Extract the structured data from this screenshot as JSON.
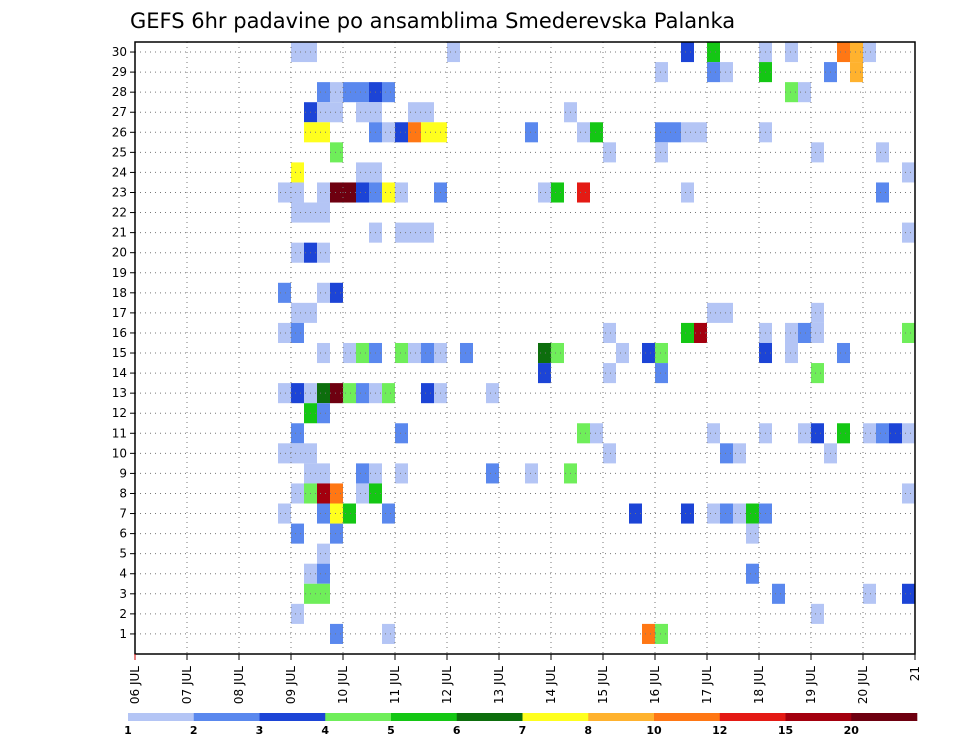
{
  "chart_data": {
    "type": "heatmap",
    "title": "GEFS 6hr padavine po ansamblima Smederevska Palanka",
    "x_tick_labels": [
      "06 JUL",
      "07 JUL",
      "08 JUL",
      "09 JUL",
      "10 JUL",
      "11 JUL",
      "12 JUL",
      "13 JUL",
      "14 JUL",
      "15 JUL",
      "16 JUL",
      "17 JUL",
      "18 JUL",
      "19 JUL",
      "20 JUL",
      "21"
    ],
    "y_tick_labels": [
      "1",
      "2",
      "3",
      "4",
      "5",
      "6",
      "7",
      "8",
      "9",
      "10",
      "11",
      "12",
      "13",
      "14",
      "15",
      "16",
      "17",
      "18",
      "19",
      "20",
      "21",
      "22",
      "23",
      "24",
      "25",
      "26",
      "27",
      "28",
      "29",
      "30"
    ],
    "x_range": [
      "06 JUL 00z",
      "21 JUL 00z"
    ],
    "x_step_hours": 6,
    "y_range": [
      0,
      30
    ],
    "grid": true,
    "colorbar": {
      "levels": [
        1,
        2,
        3,
        4,
        5,
        6,
        7,
        8,
        10,
        12,
        15,
        20
      ],
      "labels": [
        "1",
        "2",
        "3",
        "4",
        "5",
        "6",
        "7",
        "8",
        "10",
        "12",
        "15",
        "20"
      ],
      "colors": [
        "#b4c5f5",
        "#5a88ee",
        "#1c44d6",
        "#6fee5a",
        "#14c714",
        "#0d6e0d",
        "#ffff1e",
        "#ffb22e",
        "#ff7714",
        "#e41a14",
        "#a3000e",
        "#6e0010"
      ]
    },
    "cells": [
      {
        "member": 30,
        "time": "09 JUL 00z",
        "v": 1
      },
      {
        "member": 30,
        "time": "09 JUL 06z",
        "v": 1
      },
      {
        "member": 30,
        "time": "12 JUL 00z",
        "v": 1
      },
      {
        "member": 30,
        "time": "16 JUL 12z",
        "v": 3
      },
      {
        "member": 30,
        "time": "17 JUL 00z",
        "v": 5
      },
      {
        "member": 30,
        "time": "18 JUL 00z",
        "v": 1
      },
      {
        "member": 30,
        "time": "18 JUL 12z",
        "v": 1
      },
      {
        "member": 30,
        "time": "19 JUL 12z",
        "v": 10
      },
      {
        "member": 30,
        "time": "19 JUL 18z",
        "v": 8
      },
      {
        "member": 30,
        "time": "20 JUL 00z",
        "v": 1
      },
      {
        "member": 29,
        "time": "16 JUL 00z",
        "v": 1
      },
      {
        "member": 29,
        "time": "17 JUL 00z",
        "v": 2
      },
      {
        "member": 29,
        "time": "17 JUL 06z",
        "v": 1
      },
      {
        "member": 29,
        "time": "18 JUL 00z",
        "v": 5
      },
      {
        "member": 29,
        "time": "19 JUL 06z",
        "v": 2
      },
      {
        "member": 29,
        "time": "19 JUL 18z",
        "v": 8
      },
      {
        "member": 28,
        "time": "09 JUL 12z",
        "v": 2
      },
      {
        "member": 28,
        "time": "09 JUL 18z",
        "v": 1
      },
      {
        "member": 28,
        "time": "10 JUL 00z",
        "v": 2
      },
      {
        "member": 28,
        "time": "10 JUL 06z",
        "v": 2
      },
      {
        "member": 28,
        "time": "10 JUL 12z",
        "v": 3
      },
      {
        "member": 28,
        "time": "10 JUL 18z",
        "v": 2
      },
      {
        "member": 28,
        "time": "18 JUL 12z",
        "v": 4
      },
      {
        "member": 28,
        "time": "18 JUL 18z",
        "v": 1
      },
      {
        "member": 27,
        "time": "09 JUL 06z",
        "v": 3
      },
      {
        "member": 27,
        "time": "09 JUL 12z",
        "v": 1
      },
      {
        "member": 27,
        "time": "09 JUL 18z",
        "v": 1
      },
      {
        "member": 27,
        "time": "10 JUL 06z",
        "v": 1
      },
      {
        "member": 27,
        "time": "10 JUL 12z",
        "v": 1
      },
      {
        "member": 27,
        "time": "11 JUL 06z",
        "v": 1
      },
      {
        "member": 27,
        "time": "11 JUL 12z",
        "v": 1
      },
      {
        "member": 27,
        "time": "14 JUL 06z",
        "v": 1
      },
      {
        "member": 26,
        "time": "09 JUL 06z",
        "v": 7
      },
      {
        "member": 26,
        "time": "09 JUL 12z",
        "v": 7
      },
      {
        "member": 26,
        "time": "10 JUL 12z",
        "v": 2
      },
      {
        "member": 26,
        "time": "10 JUL 18z",
        "v": 1
      },
      {
        "member": 26,
        "time": "11 JUL 00z",
        "v": 3
      },
      {
        "member": 26,
        "time": "11 JUL 06z",
        "v": 10
      },
      {
        "member": 26,
        "time": "11 JUL 12z",
        "v": 7
      },
      {
        "member": 26,
        "time": "11 JUL 18z",
        "v": 7
      },
      {
        "member": 26,
        "time": "13 JUL 12z",
        "v": 2
      },
      {
        "member": 26,
        "time": "14 JUL 12z",
        "v": 1
      },
      {
        "member": 26,
        "time": "14 JUL 18z",
        "v": 5
      },
      {
        "member": 26,
        "time": "16 JUL 00z",
        "v": 2
      },
      {
        "member": 26,
        "time": "16 JUL 06z",
        "v": 2
      },
      {
        "member": 26,
        "time": "16 JUL 12z",
        "v": 1
      },
      {
        "member": 26,
        "time": "16 JUL 18z",
        "v": 1
      },
      {
        "member": 26,
        "time": "18 JUL 00z",
        "v": 1
      },
      {
        "member": 25,
        "time": "09 JUL 18z",
        "v": 4
      },
      {
        "member": 25,
        "time": "15 JUL 00z",
        "v": 1
      },
      {
        "member": 25,
        "time": "16 JUL 00z",
        "v": 1
      },
      {
        "member": 25,
        "time": "19 JUL 00z",
        "v": 1
      },
      {
        "member": 25,
        "time": "20 JUL 06z",
        "v": 1
      },
      {
        "member": 24,
        "time": "09 JUL 00z",
        "v": 7
      },
      {
        "member": 24,
        "time": "10 JUL 06z",
        "v": 1
      },
      {
        "member": 24,
        "time": "10 JUL 12z",
        "v": 1
      },
      {
        "member": 24,
        "time": "20 JUL 18z",
        "v": 1
      },
      {
        "member": 23,
        "time": "08 JUL 18z",
        "v": 1
      },
      {
        "member": 23,
        "time": "09 JUL 00z",
        "v": 1
      },
      {
        "member": 23,
        "time": "09 JUL 12z",
        "v": 1
      },
      {
        "member": 23,
        "time": "09 JUL 18z",
        "v": 20
      },
      {
        "member": 23,
        "time": "10 JUL 00z",
        "v": 20
      },
      {
        "member": 23,
        "time": "10 JUL 06z",
        "v": 3
      },
      {
        "member": 23,
        "time": "10 JUL 12z",
        "v": 2
      },
      {
        "member": 23,
        "time": "10 JUL 18z",
        "v": 7
      },
      {
        "member": 23,
        "time": "11 JUL 00z",
        "v": 1
      },
      {
        "member": 23,
        "time": "11 JUL 18z",
        "v": 2
      },
      {
        "member": 23,
        "time": "13 JUL 18z",
        "v": 1
      },
      {
        "member": 23,
        "time": "14 JUL 00z",
        "v": 5
      },
      {
        "member": 23,
        "time": "14 JUL 12z",
        "v": 12
      },
      {
        "member": 23,
        "time": "16 JUL 12z",
        "v": 1
      },
      {
        "member": 23,
        "time": "20 JUL 06z",
        "v": 2
      },
      {
        "member": 22,
        "time": "09 JUL 00z",
        "v": 1
      },
      {
        "member": 22,
        "time": "09 JUL 06z",
        "v": 1
      },
      {
        "member": 22,
        "time": "09 JUL 12z",
        "v": 1
      },
      {
        "member": 21,
        "time": "10 JUL 12z",
        "v": 1
      },
      {
        "member": 21,
        "time": "11 JUL 00z",
        "v": 1
      },
      {
        "member": 21,
        "time": "11 JUL 06z",
        "v": 1
      },
      {
        "member": 21,
        "time": "11 JUL 12z",
        "v": 1
      },
      {
        "member": 21,
        "time": "20 JUL 18z",
        "v": 1
      },
      {
        "member": 20,
        "time": "09 JUL 00z",
        "v": 1
      },
      {
        "member": 20,
        "time": "09 JUL 06z",
        "v": 3
      },
      {
        "member": 20,
        "time": "09 JUL 12z",
        "v": 1
      },
      {
        "member": 18,
        "time": "08 JUL 18z",
        "v": 2
      },
      {
        "member": 18,
        "time": "09 JUL 12z",
        "v": 1
      },
      {
        "member": 18,
        "time": "09 JUL 18z",
        "v": 3
      },
      {
        "member": 17,
        "time": "09 JUL 00z",
        "v": 1
      },
      {
        "member": 17,
        "time": "09 JUL 06z",
        "v": 1
      },
      {
        "member": 17,
        "time": "17 JUL 00z",
        "v": 1
      },
      {
        "member": 17,
        "time": "17 JUL 06z",
        "v": 1
      },
      {
        "member": 17,
        "time": "19 JUL 00z",
        "v": 1
      },
      {
        "member": 16,
        "time": "08 JUL 18z",
        "v": 1
      },
      {
        "member": 16,
        "time": "09 JUL 00z",
        "v": 2
      },
      {
        "member": 16,
        "time": "15 JUL 00z",
        "v": 1
      },
      {
        "member": 16,
        "time": "16 JUL 12z",
        "v": 5
      },
      {
        "member": 16,
        "time": "16 JUL 18z",
        "v": 15
      },
      {
        "member": 16,
        "time": "18 JUL 00z",
        "v": 1
      },
      {
        "member": 16,
        "time": "18 JUL 12z",
        "v": 1
      },
      {
        "member": 16,
        "time": "18 JUL 18z",
        "v": 2
      },
      {
        "member": 16,
        "time": "19 JUL 00z",
        "v": 1
      },
      {
        "member": 16,
        "time": "20 JUL 18z",
        "v": 4
      },
      {
        "member": 15,
        "time": "09 JUL 12z",
        "v": 1
      },
      {
        "member": 15,
        "time": "10 JUL 00z",
        "v": 1
      },
      {
        "member": 15,
        "time": "10 JUL 06z",
        "v": 4
      },
      {
        "member": 15,
        "time": "10 JUL 12z",
        "v": 2
      },
      {
        "member": 15,
        "time": "11 JUL 00z",
        "v": 4
      },
      {
        "member": 15,
        "time": "11 JUL 06z",
        "v": 1
      },
      {
        "member": 15,
        "time": "11 JUL 12z",
        "v": 2
      },
      {
        "member": 15,
        "time": "11 JUL 18z",
        "v": 1
      },
      {
        "member": 15,
        "time": "12 JUL 06z",
        "v": 2
      },
      {
        "member": 15,
        "time": "13 JUL 18z",
        "v": 6
      },
      {
        "member": 15,
        "time": "14 JUL 00z",
        "v": 4
      },
      {
        "member": 15,
        "time": "15 JUL 06z",
        "v": 1
      },
      {
        "member": 15,
        "time": "15 JUL 18z",
        "v": 3
      },
      {
        "member": 15,
        "time": "16 JUL 00z",
        "v": 4
      },
      {
        "member": 15,
        "time": "18 JUL 00z",
        "v": 3
      },
      {
        "member": 15,
        "time": "18 JUL 12z",
        "v": 1
      },
      {
        "member": 15,
        "time": "19 JUL 12z",
        "v": 2
      },
      {
        "member": 14,
        "time": "13 JUL 18z",
        "v": 3
      },
      {
        "member": 14,
        "time": "15 JUL 00z",
        "v": 1
      },
      {
        "member": 14,
        "time": "16 JUL 00z",
        "v": 2
      },
      {
        "member": 14,
        "time": "19 JUL 00z",
        "v": 4
      },
      {
        "member": 13,
        "time": "08 JUL 18z",
        "v": 1
      },
      {
        "member": 13,
        "time": "09 JUL 00z",
        "v": 3
      },
      {
        "member": 13,
        "time": "09 JUL 06z",
        "v": 1
      },
      {
        "member": 13,
        "time": "09 JUL 12z",
        "v": 6
      },
      {
        "member": 13,
        "time": "09 JUL 18z",
        "v": 20
      },
      {
        "member": 13,
        "time": "10 JUL 00z",
        "v": 4
      },
      {
        "member": 13,
        "time": "10 JUL 06z",
        "v": 2
      },
      {
        "member": 13,
        "time": "10 JUL 12z",
        "v": 1
      },
      {
        "member": 13,
        "time": "10 JUL 18z",
        "v": 4
      },
      {
        "member": 13,
        "time": "11 JUL 12z",
        "v": 3
      },
      {
        "member": 13,
        "time": "11 JUL 18z",
        "v": 1
      },
      {
        "member": 13,
        "time": "12 JUL 18z",
        "v": 1
      },
      {
        "member": 12,
        "time": "09 JUL 06z",
        "v": 5
      },
      {
        "member": 12,
        "time": "09 JUL 12z",
        "v": 2
      },
      {
        "member": 11,
        "time": "09 JUL 00z",
        "v": 2
      },
      {
        "member": 11,
        "time": "11 JUL 00z",
        "v": 2
      },
      {
        "member": 11,
        "time": "14 JUL 12z",
        "v": 4
      },
      {
        "member": 11,
        "time": "14 JUL 18z",
        "v": 1
      },
      {
        "member": 11,
        "time": "17 JUL 00z",
        "v": 1
      },
      {
        "member": 11,
        "time": "18 JUL 00z",
        "v": 1
      },
      {
        "member": 11,
        "time": "18 JUL 18z",
        "v": 1
      },
      {
        "member": 11,
        "time": "19 JUL 00z",
        "v": 3
      },
      {
        "member": 11,
        "time": "19 JUL 12z",
        "v": 5
      },
      {
        "member": 11,
        "time": "20 JUL 00z",
        "v": 1
      },
      {
        "member": 11,
        "time": "20 JUL 06z",
        "v": 2
      },
      {
        "member": 11,
        "time": "20 JUL 12z",
        "v": 3
      },
      {
        "member": 11,
        "time": "20 JUL 18z",
        "v": 1
      },
      {
        "member": 10,
        "time": "08 JUL 18z",
        "v": 1
      },
      {
        "member": 10,
        "time": "09 JUL 00z",
        "v": 1
      },
      {
        "member": 10,
        "time": "09 JUL 06z",
        "v": 1
      },
      {
        "member": 10,
        "time": "15 JUL 00z",
        "v": 1
      },
      {
        "member": 10,
        "time": "17 JUL 06z",
        "v": 2
      },
      {
        "member": 10,
        "time": "17 JUL 12z",
        "v": 1
      },
      {
        "member": 10,
        "time": "19 JUL 06z",
        "v": 1
      },
      {
        "member": 9,
        "time": "09 JUL 06z",
        "v": 1
      },
      {
        "member": 9,
        "time": "09 JUL 12z",
        "v": 1
      },
      {
        "member": 9,
        "time": "10 JUL 06z",
        "v": 2
      },
      {
        "member": 9,
        "time": "10 JUL 12z",
        "v": 1
      },
      {
        "member": 9,
        "time": "11 JUL 00z",
        "v": 1
      },
      {
        "member": 9,
        "time": "12 JUL 18z",
        "v": 2
      },
      {
        "member": 9,
        "time": "13 JUL 12z",
        "v": 1
      },
      {
        "member": 9,
        "time": "14 JUL 06z",
        "v": 4
      },
      {
        "member": 8,
        "time": "09 JUL 00z",
        "v": 1
      },
      {
        "member": 8,
        "time": "09 JUL 06z",
        "v": 4
      },
      {
        "member": 8,
        "time": "09 JUL 12z",
        "v": 15
      },
      {
        "member": 8,
        "time": "09 JUL 18z",
        "v": 10
      },
      {
        "member": 8,
        "time": "10 JUL 06z",
        "v": 1
      },
      {
        "member": 8,
        "time": "10 JUL 12z",
        "v": 5
      },
      {
        "member": 8,
        "time": "20 JUL 18z",
        "v": 1
      },
      {
        "member": 7,
        "time": "08 JUL 18z",
        "v": 1
      },
      {
        "member": 7,
        "time": "09 JUL 12z",
        "v": 2
      },
      {
        "member": 7,
        "time": "09 JUL 18z",
        "v": 7
      },
      {
        "member": 7,
        "time": "10 JUL 00z",
        "v": 5
      },
      {
        "member": 7,
        "time": "10 JUL 18z",
        "v": 2
      },
      {
        "member": 7,
        "time": "15 JUL 12z",
        "v": 3
      },
      {
        "member": 7,
        "time": "16 JUL 12z",
        "v": 3
      },
      {
        "member": 7,
        "time": "17 JUL 00z",
        "v": 1
      },
      {
        "member": 7,
        "time": "17 JUL 06z",
        "v": 2
      },
      {
        "member": 7,
        "time": "17 JUL 12z",
        "v": 1
      },
      {
        "member": 7,
        "time": "17 JUL 18z",
        "v": 5
      },
      {
        "member": 7,
        "time": "18 JUL 00z",
        "v": 2
      },
      {
        "member": 6,
        "time": "09 JUL 00z",
        "v": 2
      },
      {
        "member": 6,
        "time": "09 JUL 18z",
        "v": 2
      },
      {
        "member": 6,
        "time": "17 JUL 18z",
        "v": 1
      },
      {
        "member": 5,
        "time": "09 JUL 12z",
        "v": 1
      },
      {
        "member": 4,
        "time": "09 JUL 06z",
        "v": 1
      },
      {
        "member": 4,
        "time": "09 JUL 12z",
        "v": 2
      },
      {
        "member": 4,
        "time": "17 JUL 18z",
        "v": 2
      },
      {
        "member": 3,
        "time": "09 JUL 06z",
        "v": 4
      },
      {
        "member": 3,
        "time": "09 JUL 12z",
        "v": 4
      },
      {
        "member": 3,
        "time": "18 JUL 06z",
        "v": 2
      },
      {
        "member": 3,
        "time": "20 JUL 00z",
        "v": 1
      },
      {
        "member": 3,
        "time": "20 JUL 18z",
        "v": 3
      },
      {
        "member": 2,
        "time": "09 JUL 00z",
        "v": 1
      },
      {
        "member": 2,
        "time": "19 JUL 00z",
        "v": 1
      },
      {
        "member": 1,
        "time": "09 JUL 18z",
        "v": 2
      },
      {
        "member": 1,
        "time": "10 JUL 18z",
        "v": 1
      },
      {
        "member": 1,
        "time": "15 JUL 18z",
        "v": 10
      },
      {
        "member": 1,
        "time": "16 JUL 00z",
        "v": 4
      }
    ]
  }
}
